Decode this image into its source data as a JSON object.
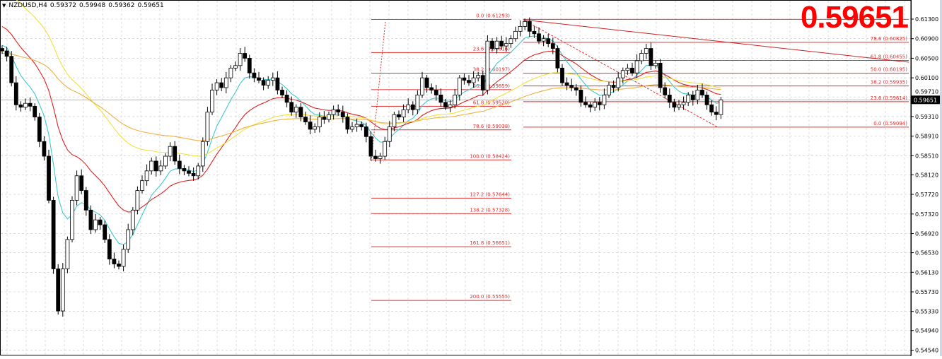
{
  "header": {
    "symbol": "NZDUSD,H4",
    "open": "0.59372",
    "high": "0.59948",
    "low": "0.59362",
    "close": "0.59651",
    "menu_icon": "triangle-down-icon"
  },
  "big_price": "0.59651",
  "colors": {
    "bull": "#ffffff",
    "bear": "#000000",
    "fib": "#e03030",
    "ma_fast": "#40c8d0",
    "ma_mid": "#e02020",
    "ma_slow": "#f0e040",
    "ma_long": "#f0b040",
    "grid": "#c8c8c8",
    "price_tag_bg": "#000000"
  },
  "chart_data": {
    "type": "candlestick",
    "price_axis": {
      "ticks": [
        "0.61300",
        "0.60900",
        "0.60500",
        "0.60100",
        "0.59710",
        "0.59310",
        "0.58910",
        "0.58510",
        "0.58120",
        "0.57720",
        "0.57320",
        "0.56920",
        "0.56530",
        "0.56130",
        "0.55730",
        "0.55330",
        "0.54940",
        "0.54540"
      ],
      "range": [
        0.5448,
        0.6168
      ]
    },
    "current_price": "0.59651",
    "grid": true,
    "closes": [
      0.6065,
      0.6054,
      0.6,
      0.5955,
      0.595,
      0.5958,
      0.5952,
      0.593,
      0.588,
      0.585,
      0.576,
      0.562,
      0.5534,
      0.562,
      0.568,
      0.576,
      0.581,
      0.578,
      0.574,
      0.57,
      0.572,
      0.571,
      0.568,
      0.564,
      0.563,
      0.5625,
      0.566,
      0.57,
      0.574,
      0.578,
      0.58,
      0.582,
      0.584,
      0.582,
      0.583,
      0.585,
      0.587,
      0.584,
      0.5825,
      0.582,
      0.5815,
      0.581,
      0.583,
      0.588,
      0.594,
      0.5985,
      0.6,
      0.599,
      0.601,
      0.603,
      0.6035,
      0.606,
      0.605,
      0.602,
      0.601,
      0.6005,
      0.5995,
      0.6005,
      0.601,
      0.5985,
      0.5975,
      0.596,
      0.594,
      0.595,
      0.593,
      0.592,
      0.5905,
      0.591,
      0.593,
      0.5925,
      0.5935,
      0.5945,
      0.594,
      0.593,
      0.5905,
      0.591,
      0.5915,
      0.591,
      0.589,
      0.585,
      0.5845,
      0.585,
      0.588,
      0.591,
      0.5935,
      0.593,
      0.5945,
      0.5955,
      0.5945,
      0.5975,
      0.601,
      0.599,
      0.5985,
      0.5975,
      0.596,
      0.595,
      0.5955,
      0.5975,
      0.601,
      0.6005,
      0.6,
      0.601,
      0.6015,
      0.5985,
      0.6085,
      0.607,
      0.6085,
      0.6075,
      0.608,
      0.609,
      0.6105,
      0.6115,
      0.6125,
      0.6105,
      0.61,
      0.6085,
      0.609,
      0.608,
      0.607,
      0.603,
      0.6,
      0.5995,
      0.599,
      0.5985,
      0.596,
      0.5955,
      0.595,
      0.596,
      0.5955,
      0.5975,
      0.5995,
      0.599,
      0.601,
      0.6025,
      0.603,
      0.602,
      0.6045,
      0.606,
      0.607,
      0.6035,
      0.604,
      0.599,
      0.5975,
      0.596,
      0.595,
      0.5955,
      0.596,
      0.5975,
      0.5965,
      0.5985,
      0.5975,
      0.5955,
      0.594,
      0.5935,
      0.59651
    ],
    "fib_left": {
      "levels": [
        {
          "label": "0.0",
          "price": "0.61293"
        },
        {
          "label": "23.6",
          "price": "0.60616"
        },
        {
          "label": "38.2",
          "price": "0.60197"
        },
        {
          "label": "50.0",
          "price": "0.59859"
        },
        {
          "label": "61.8",
          "price": "0.59520"
        },
        {
          "label": "78.6",
          "price": "0.59038"
        },
        {
          "label": "100.0",
          "price": "0.58424"
        },
        {
          "label": "127.2",
          "price": "0.57644"
        },
        {
          "label": "138.2",
          "price": "0.57328"
        },
        {
          "label": "161.8",
          "price": "0.56651"
        },
        {
          "label": "200.0",
          "price": "0.55555"
        }
      ]
    },
    "fib_right": {
      "levels": [
        {
          "label": "0.0",
          "price": "0.59094"
        },
        {
          "label": "23.6",
          "price": "0.59614"
        },
        {
          "label": "38.2",
          "price": "0.59935"
        },
        {
          "label": "50.0",
          "price": "0.60195"
        },
        {
          "label": "61.8",
          "price": "0.60455"
        },
        {
          "label": "78.6",
          "price": "0.60825"
        }
      ]
    }
  }
}
